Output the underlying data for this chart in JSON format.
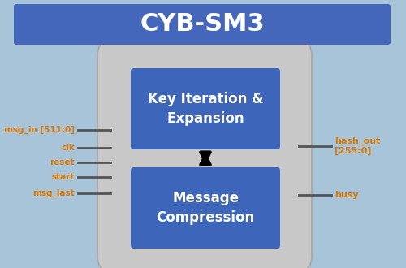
{
  "bg_color": "#a8c4d8",
  "title": "CYB-SM3",
  "title_bg": "#4466bb",
  "title_text_color": "#ffffff",
  "outer_box_color": "#c8c8c8",
  "inner_box_color": "#3d66bb",
  "inner_box_text_color": "#ffffff",
  "left_labels": [
    "msg_in [511:0]",
    "clk",
    "reset",
    "start",
    "msg_last"
  ],
  "right_label1": "hash_out\n[255:0]",
  "right_label2": "busy",
  "label_color": "#dd7700",
  "block1_text": "Key Iteration &\nExpansion",
  "block2_text": "Message\nCompression",
  "outer_edge_color": "#aaaaaa",
  "line_color": "#555555",
  "figsize": [
    5.0,
    3.3
  ],
  "dpi": 100
}
